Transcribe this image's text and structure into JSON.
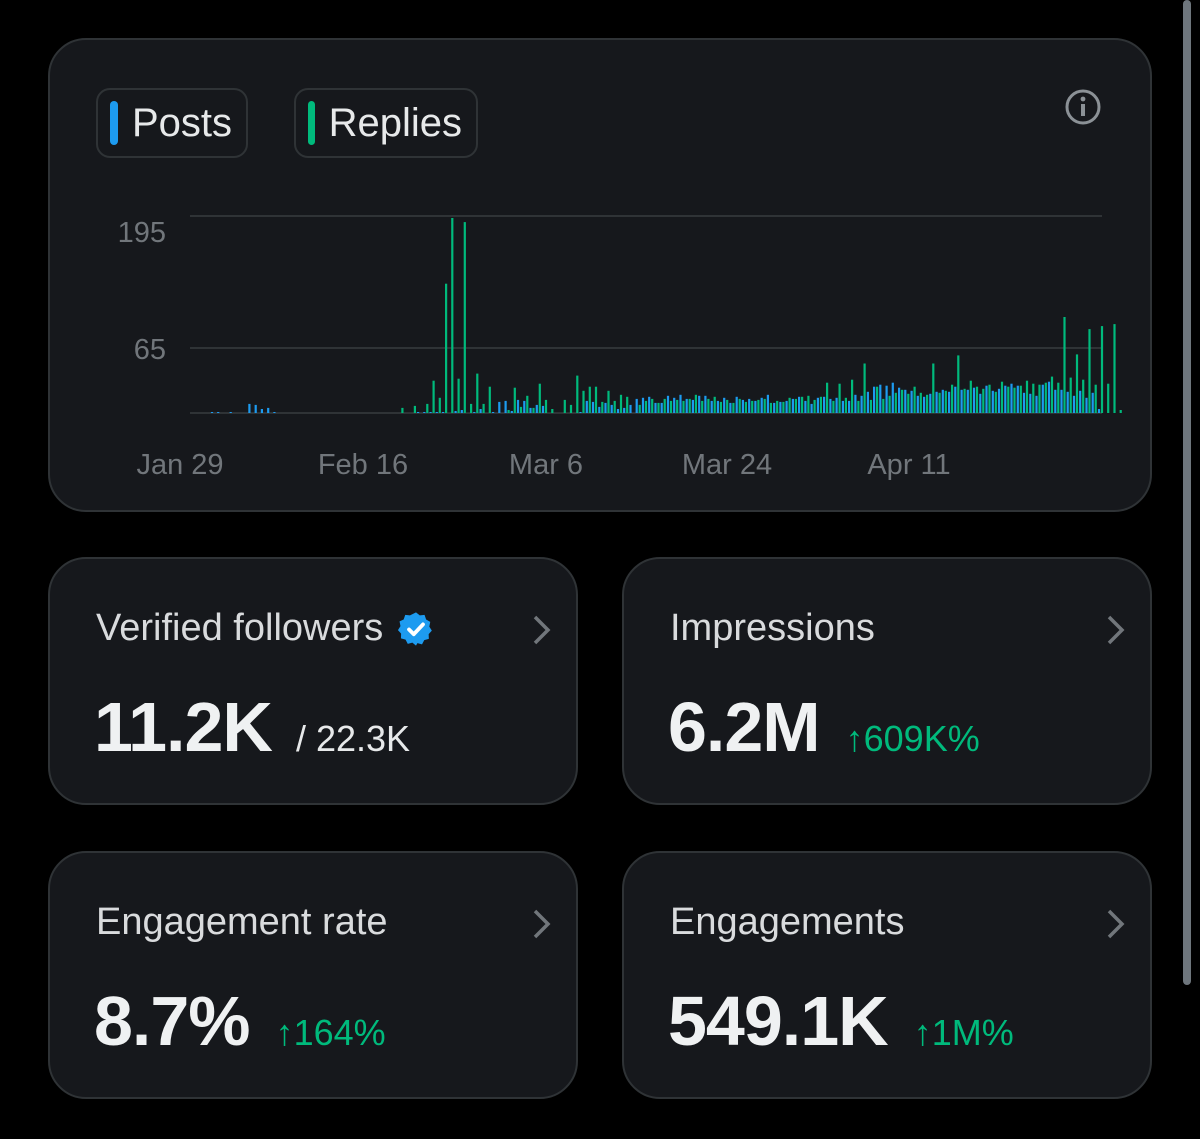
{
  "colors": {
    "posts": "#1d9bf0",
    "replies": "#00ba7c",
    "background": "#000000",
    "card": "#16181c",
    "border": "#2f3336",
    "positive": "#00ba7c"
  },
  "legend": {
    "posts_label": "Posts",
    "replies_label": "Replies"
  },
  "info_icon": "info-circle-icon",
  "chart_data": {
    "type": "bar",
    "x_tick_labels": [
      "Jan 29",
      "Feb 16",
      "Mar 6",
      "Mar 24",
      "Apr 11"
    ],
    "y_tick_labels": [
      "195",
      "65"
    ],
    "ylim": [
      0,
      195
    ],
    "grid": true,
    "series": [
      {
        "name": "Posts",
        "values": [
          0,
          0,
          0,
          1,
          1,
          0,
          1,
          0,
          0,
          9,
          8,
          4,
          5,
          1,
          0,
          0,
          0,
          0,
          0,
          0,
          0,
          0,
          0,
          0,
          0,
          0,
          0,
          0,
          0,
          0,
          0,
          0,
          0,
          0,
          0,
          0,
          1,
          1,
          1,
          1,
          1,
          0,
          2,
          3,
          0,
          1,
          4,
          0,
          1,
          11,
          12,
          2,
          13,
          12,
          5,
          8,
          7,
          0,
          0,
          0,
          0,
          0,
          1,
          12,
          11,
          6,
          10,
          8,
          4,
          5,
          8,
          14,
          15,
          16,
          10,
          10,
          17,
          15,
          18,
          14,
          13,
          17,
          17,
          12,
          12,
          15,
          10,
          16,
          13,
          14,
          12,
          15,
          18,
          10,
          11,
          12,
          14,
          16,
          12,
          9,
          15,
          16,
          14,
          15,
          12,
          12,
          18,
          17,
          21,
          26,
          28,
          27,
          30,
          25,
          23,
          22,
          17,
          16,
          19,
          21,
          23,
          21,
          26,
          23,
          23,
          25,
          19,
          27,
          22,
          24,
          27,
          29,
          27,
          20,
          19,
          17,
          28,
          31,
          23,
          23,
          21,
          17,
          22,
          15,
          20,
          4
        ]
      },
      {
        "name": "Replies",
        "values": [
          0,
          0,
          0,
          0,
          0,
          0,
          0,
          0,
          0,
          0,
          0,
          0,
          0,
          0,
          0,
          0,
          0,
          0,
          0,
          0,
          0,
          0,
          0,
          0,
          0,
          0,
          0,
          0,
          0,
          0,
          0,
          0,
          0,
          0,
          0,
          0,
          0,
          0,
          0,
          0,
          0,
          0,
          0,
          0,
          0,
          0,
          0,
          0,
          0,
          0,
          0,
          0,
          0,
          0,
          0,
          0,
          0,
          0,
          0,
          0,
          0,
          0,
          0,
          0,
          0,
          0,
          0,
          0,
          0,
          0,
          0,
          0,
          0,
          0,
          0,
          0,
          0,
          0,
          0,
          0,
          0,
          0,
          0,
          0,
          0,
          0,
          0,
          0,
          0,
          0,
          0,
          0,
          0,
          0,
          0,
          0,
          0,
          0,
          0,
          0,
          0,
          0,
          0,
          0,
          0,
          0,
          0,
          0,
          0,
          0,
          0,
          0,
          0,
          0,
          0,
          0,
          0,
          0,
          0,
          0,
          0,
          0,
          0,
          0,
          0,
          0,
          0,
          0,
          0,
          0,
          0,
          0,
          0,
          0,
          0,
          0,
          0,
          0,
          0,
          0,
          0,
          0,
          0,
          0,
          0,
          0
        ]
      },
      {
        "name": "Replies-peaks",
        "values": []
      }
    ],
    "replies_points": [
      [
        33,
        5
      ],
      [
        35,
        7
      ],
      [
        37,
        9
      ],
      [
        38,
        32
      ],
      [
        39,
        15
      ],
      [
        40,
        128
      ],
      [
        41,
        193
      ],
      [
        42,
        34
      ],
      [
        43,
        189
      ],
      [
        44,
        9
      ],
      [
        45,
        39
      ],
      [
        46,
        9
      ],
      [
        47,
        26
      ],
      [
        48,
        0
      ],
      [
        49,
        0
      ],
      [
        50,
        3
      ],
      [
        51,
        25
      ],
      [
        52,
        6
      ],
      [
        53,
        17
      ],
      [
        54,
        5
      ],
      [
        55,
        29
      ],
      [
        56,
        13
      ],
      [
        57,
        4
      ],
      [
        59,
        13
      ],
      [
        60,
        8
      ],
      [
        61,
        37
      ],
      [
        62,
        22
      ],
      [
        63,
        26
      ],
      [
        64,
        26
      ],
      [
        65,
        11
      ],
      [
        66,
        22
      ],
      [
        67,
        12
      ],
      [
        68,
        18
      ],
      [
        69,
        16
      ],
      [
        71,
        8
      ],
      [
        72,
        12
      ],
      [
        73,
        14
      ],
      [
        74,
        10
      ],
      [
        75,
        14
      ],
      [
        76,
        12
      ],
      [
        77,
        13
      ],
      [
        78,
        12
      ],
      [
        79,
        14
      ],
      [
        80,
        18
      ],
      [
        81,
        12
      ],
      [
        82,
        14
      ],
      [
        83,
        16
      ],
      [
        84,
        11
      ],
      [
        85,
        13
      ],
      [
        86,
        10
      ],
      [
        87,
        14
      ],
      [
        88,
        11
      ],
      [
        89,
        12
      ],
      [
        90,
        13
      ],
      [
        91,
        14
      ],
      [
        92,
        10
      ],
      [
        93,
        12
      ],
      [
        94,
        11
      ],
      [
        95,
        15
      ],
      [
        96,
        14
      ],
      [
        97,
        16
      ],
      [
        98,
        17
      ],
      [
        99,
        13
      ],
      [
        100,
        16
      ],
      [
        101,
        30
      ],
      [
        102,
        12
      ],
      [
        103,
        29
      ],
      [
        104,
        15
      ],
      [
        105,
        33
      ],
      [
        106,
        12
      ],
      [
        107,
        49
      ],
      [
        108,
        13
      ],
      [
        109,
        26
      ],
      [
        110,
        14
      ],
      [
        111,
        17
      ],
      [
        112,
        20
      ],
      [
        113,
        23
      ],
      [
        114,
        19
      ],
      [
        115,
        26
      ],
      [
        116,
        20
      ],
      [
        117,
        18
      ],
      [
        118,
        49
      ],
      [
        119,
        20
      ],
      [
        120,
        22
      ],
      [
        121,
        28
      ],
      [
        122,
        57
      ],
      [
        123,
        24
      ],
      [
        124,
        32
      ],
      [
        125,
        26
      ],
      [
        126,
        24
      ],
      [
        127,
        28
      ],
      [
        128,
        21
      ],
      [
        129,
        31
      ],
      [
        130,
        26
      ],
      [
        131,
        25
      ],
      [
        132,
        27
      ],
      [
        133,
        32
      ],
      [
        134,
        29
      ],
      [
        135,
        28
      ],
      [
        136,
        30
      ],
      [
        137,
        36
      ],
      [
        138,
        30
      ],
      [
        139,
        95
      ],
      [
        140,
        35
      ],
      [
        141,
        58
      ],
      [
        142,
        33
      ],
      [
        143,
        83
      ],
      [
        144,
        28
      ],
      [
        145,
        86
      ],
      [
        146,
        29
      ],
      [
        147,
        88
      ],
      [
        148,
        3
      ]
    ]
  },
  "stats": {
    "followers": {
      "title": "Verified followers",
      "value": "11.2K",
      "sub": "/ 22.3K",
      "badge_icon": "verified-badge-icon"
    },
    "impressions": {
      "title": "Impressions",
      "value": "6.2M",
      "change": "↑609K%"
    },
    "rate": {
      "title": "Engagement rate",
      "value": "8.7%",
      "change": "↑164%"
    },
    "engagements": {
      "title": "Engagements",
      "value": "549.1K",
      "change": "↑1M%"
    }
  }
}
